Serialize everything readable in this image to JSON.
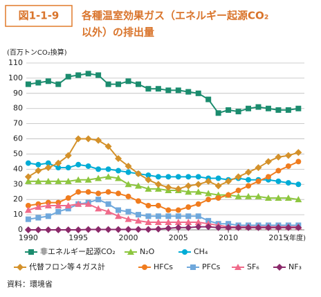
{
  "chart_data": {
    "type": "line",
    "figure_label": "図1-1-9",
    "title": [
      "各種温室効果ガス（エネルギー起源CO₂",
      "以外）の排出量"
    ],
    "y_label": "(百万トンCO₂換算)",
    "x_unit": "(年度)",
    "source": "資料：環境省",
    "x": [
      1990,
      1991,
      1992,
      1993,
      1994,
      1995,
      1996,
      1997,
      1998,
      1999,
      2000,
      2001,
      2002,
      2003,
      2004,
      2005,
      2006,
      2007,
      2008,
      2009,
      2010,
      2011,
      2012,
      2013,
      2014,
      2015,
      2016,
      2017
    ],
    "xlim": [
      1989.8,
      2017.6
    ],
    "xticks": [
      1990,
      1995,
      2000,
      2005,
      2010,
      2015
    ],
    "ylim": [
      0,
      110
    ],
    "yticks": [
      0,
      10,
      20,
      30,
      40,
      50,
      60,
      70,
      80,
      90,
      100,
      110
    ],
    "grid": true,
    "series": [
      {
        "name": "非エネルギー起源CO₂",
        "color": "#1b8c6e",
        "marker": "square",
        "values": [
          96,
          97,
          98,
          96,
          101,
          102,
          103,
          102,
          96,
          96,
          98,
          96,
          93,
          93,
          92,
          92,
          91,
          90,
          86,
          77,
          79,
          78,
          80,
          81,
          80,
          79,
          79,
          80
        ]
      },
      {
        "name": "N₂O",
        "color": "#8dc63f",
        "marker": "triangle",
        "values": [
          32,
          32,
          32,
          32,
          32,
          33,
          33,
          34,
          35,
          34,
          30,
          29,
          27,
          27,
          26,
          26,
          25,
          25,
          24,
          23,
          23,
          22,
          22,
          22,
          21,
          21,
          21,
          20
        ]
      },
      {
        "name": "CH₄",
        "color": "#00acd6",
        "marker": "circle",
        "values": [
          44,
          43,
          44,
          41,
          41,
          43,
          42,
          40,
          40,
          39,
          38,
          37,
          36,
          35,
          35,
          35,
          35,
          35,
          34,
          34,
          33,
          34,
          33,
          33,
          33,
          32,
          31,
          30
        ]
      },
      {
        "name": "代替フロン等４ガス計",
        "color": "#d4912a",
        "marker": "diamond",
        "values": [
          35,
          39,
          41,
          44,
          49,
          60,
          60,
          59,
          55,
          47,
          42,
          37,
          33,
          30,
          28,
          27,
          29,
          30,
          32,
          29,
          32,
          35,
          38,
          41,
          45,
          48,
          49,
          51
        ]
      },
      {
        "name": "HFCs",
        "color": "#f07c1e",
        "marker": "circle",
        "values": [
          16,
          17,
          18,
          18,
          21,
          25,
          25,
          24,
          25,
          24,
          22,
          19,
          16,
          16,
          13,
          13,
          15,
          17,
          20,
          21,
          23,
          26,
          29,
          32,
          35,
          39,
          42,
          45
        ]
      },
      {
        "name": "PFCs",
        "color": "#6fa8dc",
        "marker": "square",
        "values": [
          7,
          8,
          9,
          12,
          14,
          17,
          18,
          20,
          17,
          13,
          12,
          10,
          9,
          9,
          9,
          9,
          9,
          9,
          6,
          4,
          4,
          3,
          3,
          3,
          3,
          3,
          3,
          3
        ]
      },
      {
        "name": "SF₆",
        "color": "#f06a8a",
        "marker": "triangle",
        "values": [
          13,
          15,
          16,
          16,
          16,
          17,
          17,
          14,
          12,
          9,
          7,
          6,
          5,
          5,
          5,
          5,
          5,
          5,
          4,
          3,
          2,
          2,
          2,
          2,
          2,
          2,
          2,
          2
        ]
      },
      {
        "name": "NF₃",
        "color": "#8b2a6b",
        "marker": "diamond",
        "values": [
          0,
          0,
          0,
          0,
          0,
          0,
          0.2,
          0.2,
          0.2,
          0.2,
          0.3,
          0.3,
          0.3,
          0.5,
          1,
          1.5,
          1.5,
          2,
          2,
          1.5,
          1.5,
          1.5,
          1.5,
          1.5,
          1.5,
          1.5,
          1.5,
          1.5
        ]
      }
    ]
  }
}
